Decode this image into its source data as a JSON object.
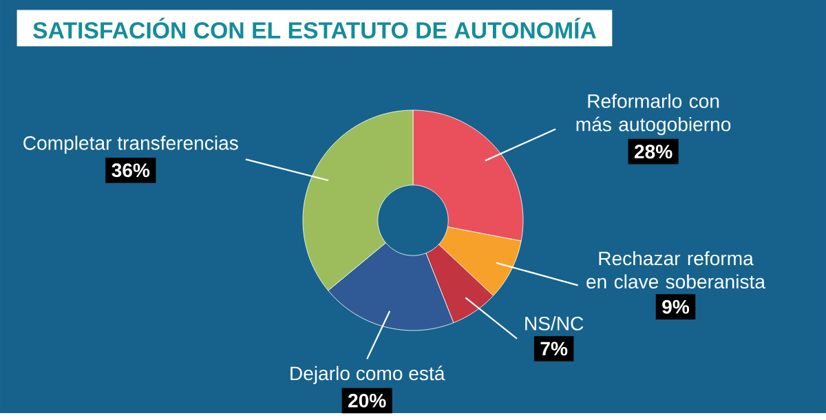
{
  "chart_data": {
    "type": "donut",
    "title": "SATISFACIÓN CON EL ESTATUTO DE AUTONOMÍA",
    "categories": [
      "Reformarlo con más autogobierno",
      "Rechazar reforma en clave soberanista",
      "NS/NC",
      "Dejarlo como está",
      "Completar transferencias"
    ],
    "values": [
      28,
      9,
      7,
      20,
      36
    ],
    "value_labels": [
      "28%",
      "9%",
      "7%",
      "20%",
      "36%"
    ],
    "colors": [
      "#e9505c",
      "#f7a12a",
      "#c2343f",
      "#2f5a95",
      "#9dbd5c"
    ]
  }
}
